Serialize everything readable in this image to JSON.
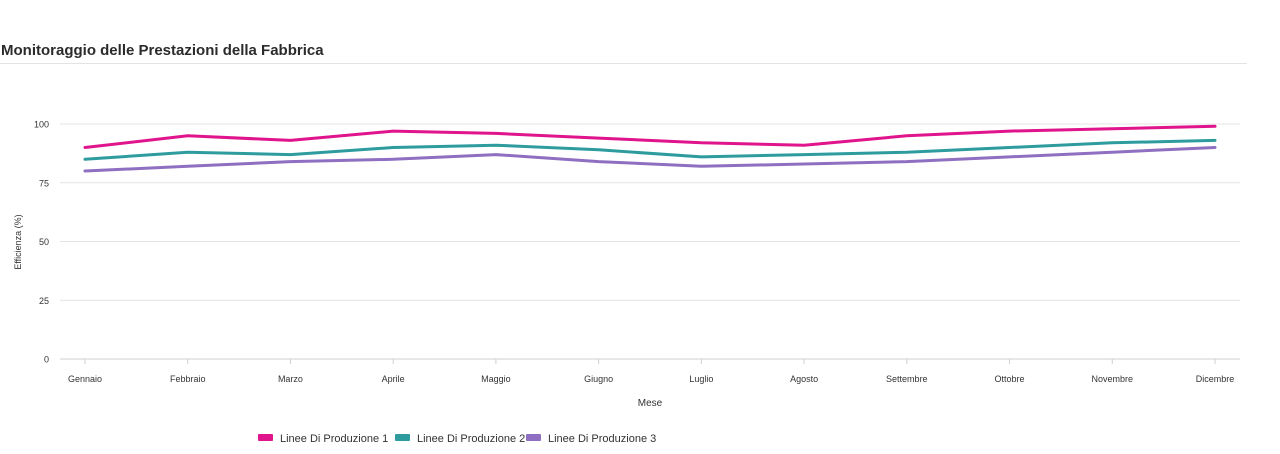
{
  "chart_data": {
    "type": "line",
    "title": "Monitoraggio delle Prestazioni della Fabbrica",
    "xlabel": "Mese",
    "ylabel": "Efficienza (%)",
    "categories": [
      "Gennaio",
      "Febbraio",
      "Marzo",
      "Aprile",
      "Maggio",
      "Giugno",
      "Luglio",
      "Agosto",
      "Settembre",
      "Ottobre",
      "Novembre",
      "Dicembre"
    ],
    "ylim": [
      0,
      100
    ],
    "yticks": [
      "0",
      "25",
      "50",
      "75",
      "100"
    ],
    "grid": true,
    "legend_position": "bottom",
    "series": [
      {
        "name": "Linee Di Produzione 1",
        "color": "#e0148c",
        "values": [
          90,
          95,
          93,
          97,
          96,
          94,
          92,
          91,
          95,
          97,
          98,
          99
        ]
      },
      {
        "name": "Linee Di Produzione 2",
        "color": "#2e9c9e",
        "values": [
          85,
          88,
          87,
          90,
          91,
          89,
          86,
          87,
          88,
          90,
          92,
          93
        ]
      },
      {
        "name": "Linee Di Produzione 3",
        "color": "#8f6fc1",
        "values": [
          80,
          82,
          84,
          85,
          87,
          84,
          82,
          83,
          84,
          86,
          88,
          90
        ]
      }
    ]
  }
}
